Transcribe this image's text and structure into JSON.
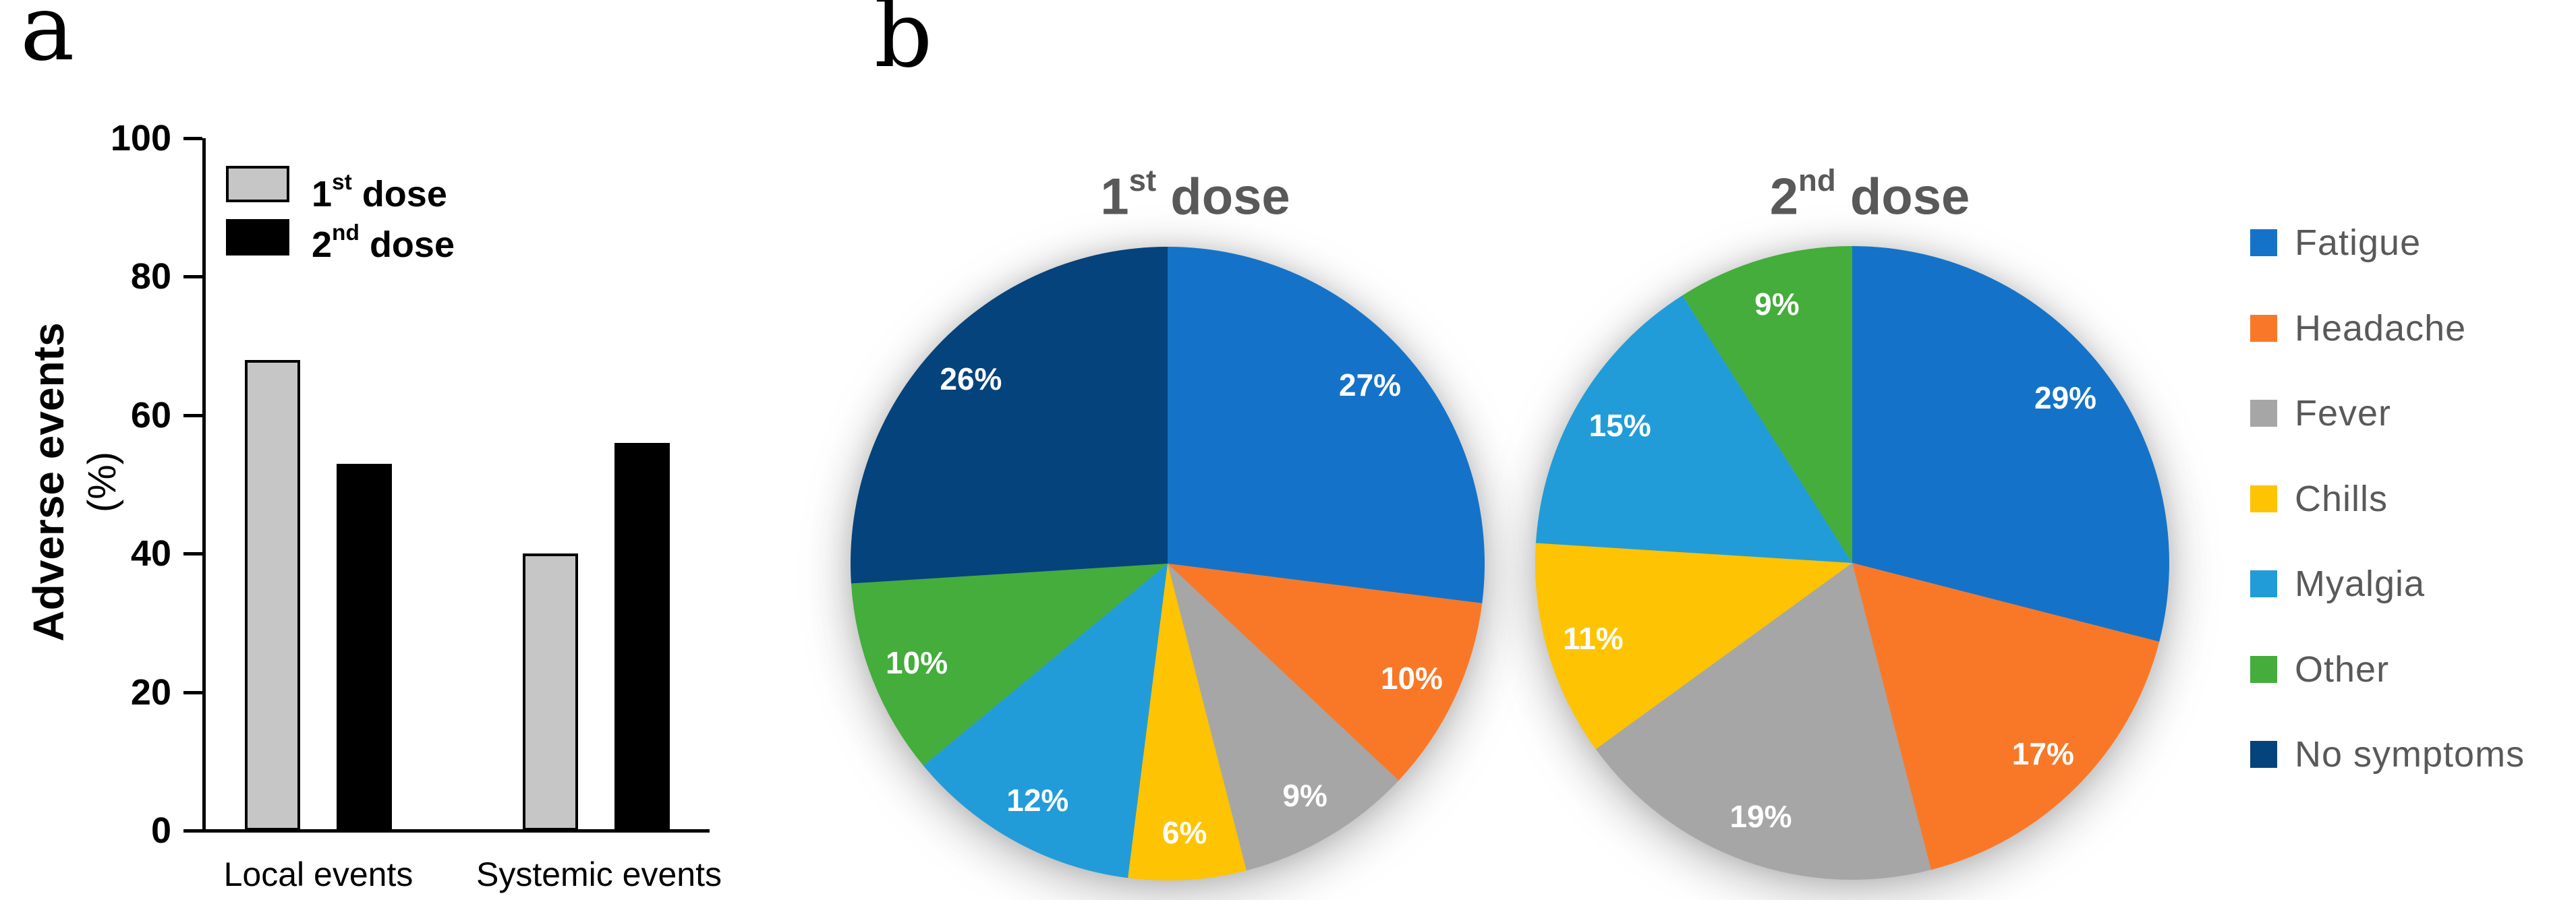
{
  "panel_a": {
    "label": "a",
    "ylabel_main": "Adverse events",
    "ylabel_unit": "(%)"
  },
  "panel_b": {
    "label": "b"
  },
  "colors": {
    "dose1_bar": "#C6C6C6",
    "dose2_bar": "#000000",
    "fatigue": "#1473C9",
    "headache": "#F97827",
    "fever": "#A6A6A6",
    "chills": "#FEC302",
    "myalgia": "#219CD8",
    "other": "#44AD3B",
    "no_symptoms": "#05437C",
    "panel_b_text": "#595959"
  },
  "chart_data": [
    {
      "id": "adverse-events-bars",
      "type": "bar",
      "title": "",
      "ylabel": "Adverse events (%)",
      "ylim": [
        0,
        100
      ],
      "yticks": [
        0,
        20,
        40,
        60,
        80,
        100
      ],
      "categories": [
        "Local events",
        "Systemic events"
      ],
      "series": [
        {
          "name": "1st dose",
          "name_base": "1",
          "name_sup": "st",
          "name_rest": " dose",
          "color": "#C6C6C6",
          "values": [
            68,
            40
          ]
        },
        {
          "name": "2nd dose",
          "name_base": "2",
          "name_sup": "nd",
          "name_rest": " dose",
          "color": "#000000",
          "values": [
            53,
            56
          ]
        }
      ],
      "grid": false,
      "legend_position": "inside-top-left"
    },
    {
      "id": "pie-1st-dose",
      "type": "pie",
      "title": "1st dose",
      "title_base": "1",
      "title_sup": "st",
      "title_rest": " dose",
      "start_angle_deg": 0,
      "direction": "clockwise",
      "data_labels": "percent-inside",
      "slices": [
        {
          "name": "Fatigue",
          "value": 27,
          "display": "27%",
          "color_key": "fatigue"
        },
        {
          "name": "Headache",
          "value": 10,
          "display": "10%",
          "color_key": "headache"
        },
        {
          "name": "Fever",
          "value": 9,
          "display": "9%",
          "color_key": "fever"
        },
        {
          "name": "Chills",
          "value": 6,
          "display": "6%",
          "color_key": "chills"
        },
        {
          "name": "Myalgia",
          "value": 12,
          "display": "12%",
          "color_key": "myalgia"
        },
        {
          "name": "Other",
          "value": 10,
          "display": "10%",
          "color_key": "other"
        },
        {
          "name": "No symptoms",
          "value": 26,
          "display": "26%",
          "color_key": "no_symptoms"
        }
      ]
    },
    {
      "id": "pie-2nd-dose",
      "type": "pie",
      "title": "2nd dose",
      "title_base": "2",
      "title_sup": "nd",
      "title_rest": " dose",
      "start_angle_deg": 0,
      "direction": "clockwise",
      "data_labels": "percent-inside",
      "slices": [
        {
          "name": "Fatigue",
          "value": 29,
          "display": "29%",
          "color_key": "fatigue"
        },
        {
          "name": "Headache",
          "value": 17,
          "display": "17%",
          "color_key": "headache"
        },
        {
          "name": "Fever",
          "value": 19,
          "display": "19%",
          "color_key": "fever"
        },
        {
          "name": "Chills",
          "value": 11,
          "display": "11%",
          "color_key": "chills"
        },
        {
          "name": "Myalgia",
          "value": 15,
          "display": "15%",
          "color_key": "myalgia"
        },
        {
          "name": "Other",
          "value": 9,
          "display": "9%",
          "color_key": "other"
        }
      ]
    }
  ],
  "legend": {
    "items": [
      {
        "label": "Fatigue",
        "color_key": "fatigue"
      },
      {
        "label": "Headache",
        "color_key": "headache"
      },
      {
        "label": "Fever",
        "color_key": "fever"
      },
      {
        "label": "Chills",
        "color_key": "chills"
      },
      {
        "label": "Myalgia",
        "color_key": "myalgia"
      },
      {
        "label": "Other",
        "color_key": "other"
      },
      {
        "label": "No symptoms",
        "color_key": "no_symptoms"
      }
    ]
  }
}
